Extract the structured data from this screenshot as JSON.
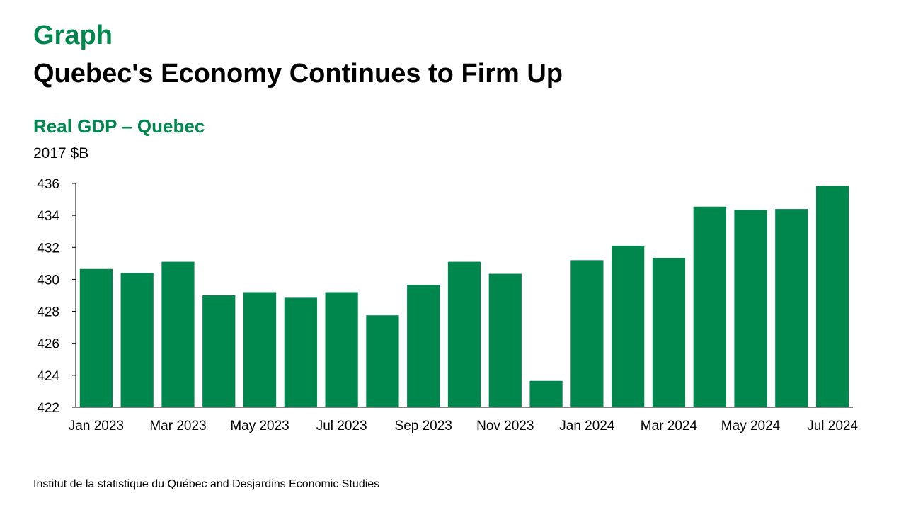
{
  "header": {
    "kicker": "Graph",
    "headline": "Quebec's Economy Continues to Firm Up"
  },
  "source": "Institut de la statistique du Québec and Desjardins Economic Studies",
  "colors": {
    "accent": "#00874e",
    "bar": "#00874e",
    "text": "#000000"
  },
  "chart_data": {
    "type": "bar",
    "title": "Real GDP – Quebec",
    "ylabel": "2017 $B",
    "xlabel": "",
    "ylim": [
      422,
      436
    ],
    "yticks": [
      422,
      424,
      426,
      428,
      430,
      432,
      434,
      436
    ],
    "grid": false,
    "legend": "none",
    "categories": [
      "Jan 2023",
      "Feb 2023",
      "Mar 2023",
      "Apr 2023",
      "May 2023",
      "Jun 2023",
      "Jul 2023",
      "Aug 2023",
      "Sep 2023",
      "Oct 2023",
      "Nov 2023",
      "Dec 2023",
      "Jan 2024",
      "Feb 2024",
      "Mar 2024",
      "Apr 2024",
      "May 2024",
      "Jun 2024",
      "Jul 2024"
    ],
    "tick_labels": [
      "Jan 2023",
      "Mar 2023",
      "May 2023",
      "Jul 2023",
      "Sep 2023",
      "Nov 2023",
      "Jan 2024",
      "Mar 2024",
      "May 2024",
      "Jul 2024"
    ],
    "values": [
      430.65,
      430.4,
      431.1,
      429.0,
      429.2,
      428.85,
      429.2,
      427.75,
      429.65,
      431.1,
      430.35,
      423.65,
      431.2,
      432.1,
      431.35,
      434.55,
      434.35,
      434.4,
      435.85
    ]
  }
}
